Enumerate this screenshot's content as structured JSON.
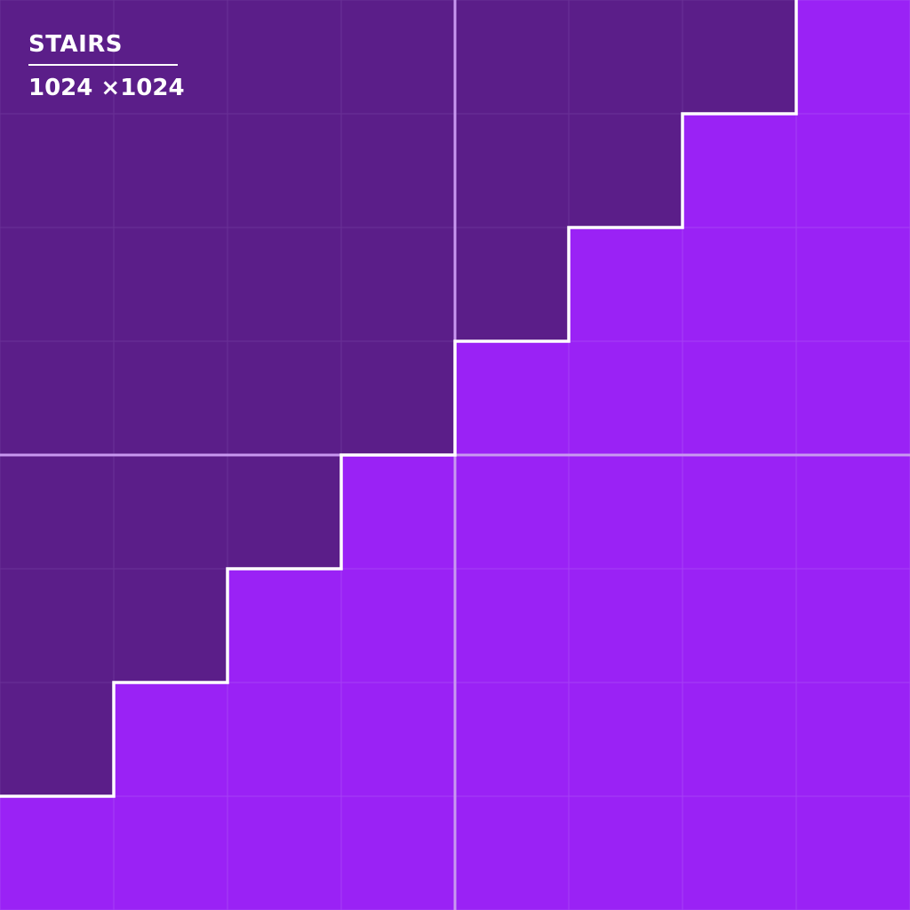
{
  "title": "STAIRS",
  "size_label": "1024 ×1024",
  "grid": {
    "columns": 8,
    "rows": 8
  },
  "colors": {
    "dark_fill": "#5b1e89",
    "light_fill": "#9a22f5",
    "grid_line_dark": "#6a3196",
    "grid_line_light": "#a640f5",
    "center_line": "#c898f0",
    "stair_outline": "#ffffff"
  }
}
